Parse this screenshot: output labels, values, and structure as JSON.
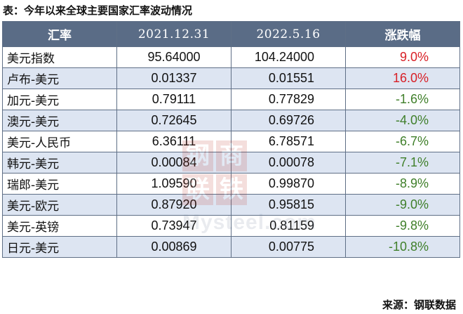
{
  "caption": "表：今年以来全球主要国家汇率波动情况",
  "headers": {
    "rate": "汇率",
    "date1": "2021.12.31",
    "date2": "2022.5.16",
    "change": "涨跌幅"
  },
  "rows": [
    {
      "name": "美元指数",
      "v2021": "95.64000",
      "v2022": "104.24000",
      "change": "9.0%",
      "direction": "up"
    },
    {
      "name": "卢布-美元",
      "v2021": "0.01337",
      "v2022": "0.01551",
      "change": "16.0%",
      "direction": "up"
    },
    {
      "name": "加元-美元",
      "v2021": "0.79111",
      "v2022": "0.77829",
      "change": "-1.6%",
      "direction": "down"
    },
    {
      "name": "澳元-美元",
      "v2021": "0.72645",
      "v2022": "0.69726",
      "change": "-4.0%",
      "direction": "down"
    },
    {
      "name": "美元-人民币",
      "v2021": "6.36111",
      "v2022": "6.78571",
      "change": "-6.7%",
      "direction": "down"
    },
    {
      "name": "韩元-美元",
      "v2021": "0.00084",
      "v2022": "0.00078",
      "change": "-7.1%",
      "direction": "down"
    },
    {
      "name": "瑞郎-美元",
      "v2021": "1.09590",
      "v2022": "0.99870",
      "change": "-8.9%",
      "direction": "down"
    },
    {
      "name": "美元-欧元",
      "v2021": "0.87920",
      "v2022": "0.95815",
      "change": "-9.0%",
      "direction": "down"
    },
    {
      "name": "美元-英镑",
      "v2021": "0.73947",
      "v2022": "0.81159",
      "change": "-9.8%",
      "direction": "down"
    },
    {
      "name": "日元-美元",
      "v2021": "0.00869",
      "v2022": "0.00775",
      "change": "-10.8%",
      "direction": "down"
    }
  ],
  "source": "来源：钢联数据",
  "watermark": {
    "chars": [
      "钢",
      "联",
      "商",
      "铁"
    ],
    "text": "Mysteel.com"
  },
  "colors": {
    "header_bg": "#5a6c86",
    "stripe": "#dde5f2",
    "up": "#d81f26",
    "down": "#3f7f2a"
  }
}
